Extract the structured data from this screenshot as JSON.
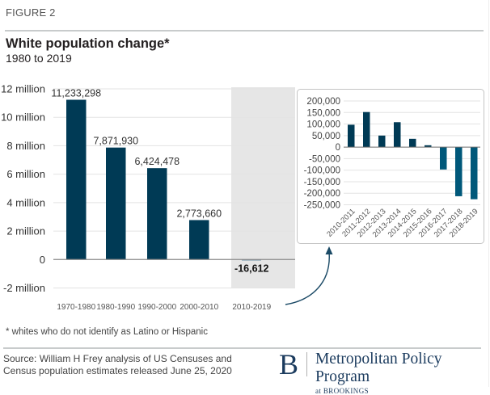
{
  "header": {
    "figure_label": "FIGURE 2",
    "title": "White population change*",
    "subtitle": "1980 to 2019"
  },
  "footer": {
    "footnote": "* whites who do not identify as Latino or Hispanic",
    "source": "Source: William H Frey analysis of US Censuses and Census population estimates released June 25, 2020",
    "logo_letter": "B",
    "logo_title": "Metropolitan Policy Program",
    "logo_subtitle": "at BROOKINGS"
  },
  "colors": {
    "bar_primary": "#003a55",
    "bar_negative": "#00587a",
    "highlight_band": "#e6e6e6",
    "gridline": "#e3e3e3",
    "axis": "#8a8a8a",
    "brand": "#1b3b5e"
  },
  "chart_data": [
    {
      "type": "bar",
      "title": "White population change*",
      "subtitle": "1980 to 2019",
      "xlabel": "",
      "ylabel": "",
      "categories": [
        "1970-1980",
        "1980-1990",
        "1990-2000",
        "2000-2010",
        "2010-2019"
      ],
      "values": [
        11233298,
        7871930,
        6424478,
        2773660,
        -16612
      ],
      "data_labels": [
        "11,233,298",
        "7,871,930",
        "6,424,478",
        "2,773,660",
        "-16,612"
      ],
      "highlighted_category": "2010-2019",
      "ylim": [
        -2000000,
        12000000
      ],
      "yticks": [
        -2000000,
        0,
        2000000,
        4000000,
        6000000,
        8000000,
        10000000,
        12000000
      ],
      "ytick_labels": [
        "-2 million",
        "0",
        "2 million",
        "4 million",
        "6 million",
        "8 million",
        "10 million",
        "12 million"
      ],
      "grid": true,
      "legend": "none"
    },
    {
      "type": "bar",
      "title": "",
      "description": "Inset: annual change 2010-2019",
      "categories": [
        "2010-2011",
        "2011-2012",
        "2012-2013",
        "2013-2014",
        "2014-2015",
        "2015-2016",
        "2016-2017",
        "2017-2018",
        "2018-2019"
      ],
      "values": [
        97000,
        152000,
        50000,
        108000,
        36000,
        8000,
        -97000,
        -213000,
        -226000
      ],
      "ylim": [
        -250000,
        200000
      ],
      "yticks": [
        -250000,
        -200000,
        -150000,
        -100000,
        -50000,
        0,
        50000,
        100000,
        150000,
        200000
      ],
      "ytick_labels": [
        "-250,000",
        "-200,000",
        "-150,000",
        "-100,000",
        "-50,000",
        "0",
        "50,000",
        "100,000",
        "150,000",
        "200,000"
      ],
      "grid": true,
      "legend": "none"
    }
  ]
}
